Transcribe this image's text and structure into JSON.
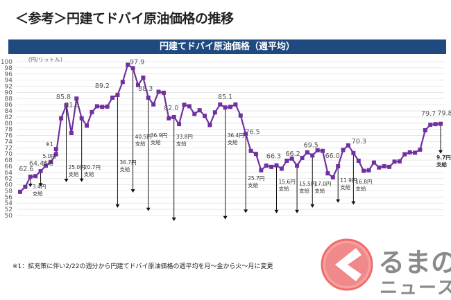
{
  "page_title": "＜参考＞円建てドバイ原油価格の推移",
  "footnote": "※1：拡充策に伴い2/22の週分から円建てドバイ原油価格の週平均を月～金から火～月に変更",
  "logo": {
    "text": "くるまのニュース",
    "color": "#f26b6b"
  },
  "chart_data": {
    "type": "line",
    "title": "円建てドバイ原油価格（週平均）",
    "ylabel": "（円/リットル）",
    "ylim": [
      50,
      100
    ],
    "yticks": [
      50,
      52,
      54,
      56,
      58,
      60,
      62,
      64,
      66,
      68,
      70,
      72,
      74,
      76,
      78,
      80,
      82,
      84,
      86,
      88,
      90,
      92,
      94,
      96,
      98,
      100
    ],
    "grid": true,
    "line_color": "#7030a0",
    "band_color": "#1f4a7f",
    "values": [
      57.7,
      59.3,
      62.6,
      62.8,
      64.4,
      66.2,
      67.4,
      69.9,
      81.6,
      85.8,
      76.8,
      88.0,
      81.6,
      79.2,
      83.6,
      85.5,
      85.3,
      85.4,
      88.3,
      89.2,
      93.4,
      99.0,
      97.9,
      92.4,
      94.8,
      88.3,
      86.1,
      90.2,
      89.9,
      81.6,
      82.0,
      79.7,
      86.0,
      85.5,
      83.0,
      84.2,
      82.4,
      79.4,
      83.5,
      86.1,
      85.1,
      85.3,
      86.1,
      82.5,
      76.5,
      71.0,
      70.0,
      64.7,
      66.2,
      65.8,
      66.3,
      65.2,
      67.8,
      68.5,
      66.2,
      68.7,
      70.5,
      69.5,
      71.2,
      71.0,
      63.7,
      62.4,
      66.0,
      71.3,
      72.8,
      70.3,
      67.8,
      64.5,
      64.7,
      67.2,
      65.6,
      66.0,
      65.8,
      67.5,
      67.6,
      69.9,
      70.5,
      70.4,
      71.4,
      77.7,
      79.5,
      79.7,
      79.8
    ],
    "note_point": {
      "week": 8,
      "value": 71.6,
      "label": "※1"
    },
    "value_labels": [
      {
        "week": 3,
        "label": "62.6"
      },
      {
        "week": 5,
        "label": "64.4"
      },
      {
        "week": 10,
        "label": "85.8"
      },
      {
        "week": 13,
        "label": "81.6"
      },
      {
        "week": 20,
        "label": "89.2"
      },
      {
        "week": 23,
        "label": "97.9"
      },
      {
        "week": 26,
        "label": "88.3"
      },
      {
        "week": 31,
        "label": "82.0"
      },
      {
        "week": 41,
        "label": "85.1"
      },
      {
        "week": 45,
        "label": "76.5"
      },
      {
        "week": 51,
        "label": "66.3"
      },
      {
        "week": 55,
        "label": "66.2"
      },
      {
        "week": 58,
        "label": "69.5"
      },
      {
        "week": 63,
        "label": "66.0"
      },
      {
        "week": 66,
        "label": "70.3"
      },
      {
        "week": 82,
        "label": "79.7"
      },
      {
        "week": 83,
        "label": "79.8"
      }
    ],
    "subsidies": [
      {
        "week": 3,
        "amount": 3.4,
        "label": "3.4円",
        "sub": "支給"
      },
      {
        "week": 5,
        "amount": 5.0,
        "label": "5.0円",
        "sub": "支給"
      },
      {
        "week": 10,
        "amount": 25.0,
        "label": "25.0円",
        "sub": "支給"
      },
      {
        "week": 13,
        "amount": 20.7,
        "label": "20.7円",
        "sub": "支給"
      },
      {
        "week": 20,
        "amount": 36.7,
        "label": "36.7円",
        "sub": "支給"
      },
      {
        "week": 23,
        "amount": 40.5,
        "label": "40.5円",
        "sub": "支給"
      },
      {
        "week": 26,
        "amount": 36.9,
        "label": "36.9円",
        "sub": "支給"
      },
      {
        "week": 31,
        "amount": 33.8,
        "label": "33.8円",
        "sub": "支給"
      },
      {
        "week": 41,
        "amount": 36.4,
        "label": "36.4円",
        "sub": "支給"
      },
      {
        "week": 45,
        "amount": 25.7,
        "label": "25.7円",
        "sub": "支給"
      },
      {
        "week": 51,
        "amount": 15.6,
        "label": "15.6円",
        "sub": "支給"
      },
      {
        "week": 55,
        "amount": 15.5,
        "label": "15.5円",
        "sub": "支給"
      },
      {
        "week": 58,
        "amount": 17.0,
        "label": "17.0円",
        "sub": "支給"
      },
      {
        "week": 63,
        "amount": 11.9,
        "label": "11.9円",
        "sub": "支給"
      },
      {
        "week": 66,
        "amount": 16.8,
        "label": "16.8円",
        "sub": "支給"
      },
      {
        "week": 83,
        "amount": 9.7,
        "label": "9.7円",
        "sub": "支給"
      }
    ]
  }
}
